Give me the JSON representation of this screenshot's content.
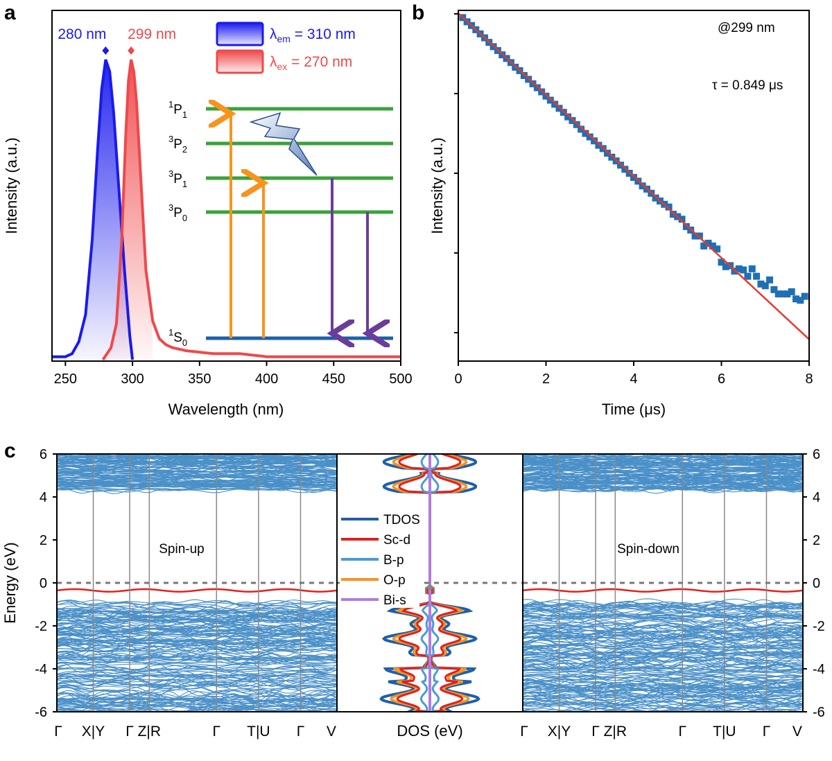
{
  "panels": {
    "a": "a",
    "b": "b",
    "c": "c"
  },
  "colors": {
    "emission": "#1a1aee",
    "excitation": "#f0484a",
    "level": "#3aa23a",
    "ground": "#1f5fa8",
    "arrow_up": "#f7941d",
    "arrow_down": "#6a3d9a",
    "band": "#4a90c8",
    "vbm_line": "#e02020",
    "decay_points": "#1f6fb5",
    "decay_fit": "#e8392b",
    "tdos": "#1f5fa8",
    "sc_d": "#e02020",
    "b_p": "#4a9ad8",
    "o_p": "#f7941d",
    "bi_s": "#b07ce0"
  },
  "chart_data": [
    {
      "type": "line",
      "panel": "a",
      "xlabel": "Wavelength (nm)",
      "ylabel": "Intensity (a.u.)",
      "xlim": [
        240,
        500
      ],
      "xticks": [
        250,
        300,
        350,
        400,
        450,
        500
      ],
      "peaks": [
        {
          "label": "280 nm",
          "x": 280
        },
        {
          "label": "299 nm",
          "x": 299
        }
      ],
      "legend": [
        {
          "label": "λem = 310 nm",
          "main": "λ",
          "sub": "em",
          "rest": " = 310 nm"
        },
        {
          "label": "λex = 270 nm",
          "main": "λ",
          "sub": "ex",
          "rest": " = 270 nm"
        }
      ],
      "series": [
        {
          "name": "λem = 310 nm",
          "x": [
            240,
            250,
            255,
            260,
            265,
            270,
            274,
            277,
            280,
            283,
            286,
            290,
            294,
            298,
            300
          ],
          "y": [
            0.01,
            0.01,
            0.02,
            0.06,
            0.15,
            0.4,
            0.7,
            0.9,
            1.0,
            0.96,
            0.82,
            0.56,
            0.3,
            0.08,
            0.0
          ]
        },
        {
          "name": "λex = 270 nm",
          "x": [
            278,
            284,
            288,
            292,
            295,
            297,
            299,
            301,
            303,
            306,
            310,
            315,
            320,
            325,
            330,
            340,
            360,
            380,
            400,
            450,
            500
          ],
          "y": [
            0.0,
            0.04,
            0.12,
            0.4,
            0.75,
            0.93,
            1.0,
            0.96,
            0.86,
            0.62,
            0.3,
            0.13,
            0.07,
            0.05,
            0.04,
            0.03,
            0.02,
            0.02,
            0.01,
            0.01,
            0.01
          ]
        }
      ],
      "energy_levels": [
        {
          "main": "1",
          "letter": "P",
          "sub": "1"
        },
        {
          "main": "3",
          "letter": "P",
          "sub": "2"
        },
        {
          "main": "3",
          "letter": "P",
          "sub": "1"
        },
        {
          "main": "3",
          "letter": "P",
          "sub": "0"
        },
        {
          "main": "1",
          "letter": "S",
          "sub": "0"
        }
      ]
    },
    {
      "type": "scatter",
      "panel": "b",
      "xlabel": "Time (μs)",
      "ylabel": "Intensity (a.u.)",
      "xlim": [
        0,
        8
      ],
      "xticks": [
        0,
        2,
        4,
        6,
        8
      ],
      "yscale": "log",
      "annotations": [
        "@299 nm",
        "τ = 0.849 μs"
      ],
      "x": [
        0.1,
        0.2,
        0.3,
        0.4,
        0.5,
        0.6,
        0.7,
        0.8,
        0.9,
        1.0,
        1.1,
        1.2,
        1.3,
        1.4,
        1.5,
        1.6,
        1.7,
        1.8,
        1.9,
        2.0,
        2.1,
        2.2,
        2.3,
        2.4,
        2.5,
        2.6,
        2.7,
        2.8,
        2.9,
        3.0,
        3.1,
        3.2,
        3.3,
        3.4,
        3.5,
        3.6,
        3.7,
        3.8,
        3.9,
        4.0,
        4.1,
        4.2,
        4.3,
        4.4,
        4.5,
        4.6,
        4.7,
        4.8,
        4.9,
        5.0,
        5.1,
        5.2,
        5.3,
        5.4,
        5.5,
        5.6,
        5.7,
        5.8,
        5.9,
        6.0,
        6.1,
        6.2,
        6.3,
        6.4,
        6.5,
        6.6,
        6.7,
        6.8,
        6.9,
        7.0,
        7.1,
        7.2,
        7.3,
        7.4,
        7.5,
        7.6,
        7.7,
        7.8,
        7.9
      ],
      "y": [
        0.88,
        0.78,
        0.7,
        0.62,
        0.55,
        0.49,
        0.43,
        0.38,
        0.34,
        0.3,
        0.27,
        0.24,
        0.21,
        0.19,
        0.165,
        0.148,
        0.13,
        0.116,
        0.103,
        0.091,
        0.081,
        0.072,
        0.064,
        0.057,
        0.05,
        0.045,
        0.04,
        0.035,
        0.031,
        0.028,
        0.025,
        0.022,
        0.02,
        0.0175,
        0.0156,
        0.014,
        0.0124,
        0.011,
        0.0098,
        0.0087,
        0.0078,
        0.0068,
        0.0062,
        0.0055,
        0.0048,
        0.0044,
        0.004,
        0.0037,
        0.003,
        0.0028,
        0.0026,
        0.0021,
        0.0019,
        0.0016,
        0.0016,
        0.0012,
        0.0013,
        0.0012,
        0.0011,
        0.00075,
        0.00066,
        0.00068,
        0.00058,
        0.00062,
        0.0006,
        0.0005,
        0.00062,
        0.0005,
        0.0004,
        0.00038,
        0.00045,
        0.00034,
        0.0003,
        0.0003,
        0.0003,
        0.00032,
        0.00026,
        0.00025,
        0.00028
      ],
      "fit": {
        "tau": 0.849
      }
    },
    {
      "type": "line",
      "panel": "c",
      "ylabel": "Energy (eV)",
      "ylim": [
        -6,
        6
      ],
      "yticks": [
        6,
        4,
        2,
        0,
        -2,
        -4,
        -6
      ],
      "bands_left_label": "Spin-up",
      "bands_right_label": "Spin-down",
      "kpath_labels": [
        "Γ",
        "X|Y",
        "Γ",
        "Z|R",
        "Γ",
        "T|U",
        "Γ",
        "V"
      ],
      "dos_xlabel": "DOS (eV)",
      "legend": [
        "TDOS",
        "Sc-d",
        "B-p",
        "O-p",
        "Bi-s"
      ],
      "impurity_band_energy": -0.35
    }
  ]
}
